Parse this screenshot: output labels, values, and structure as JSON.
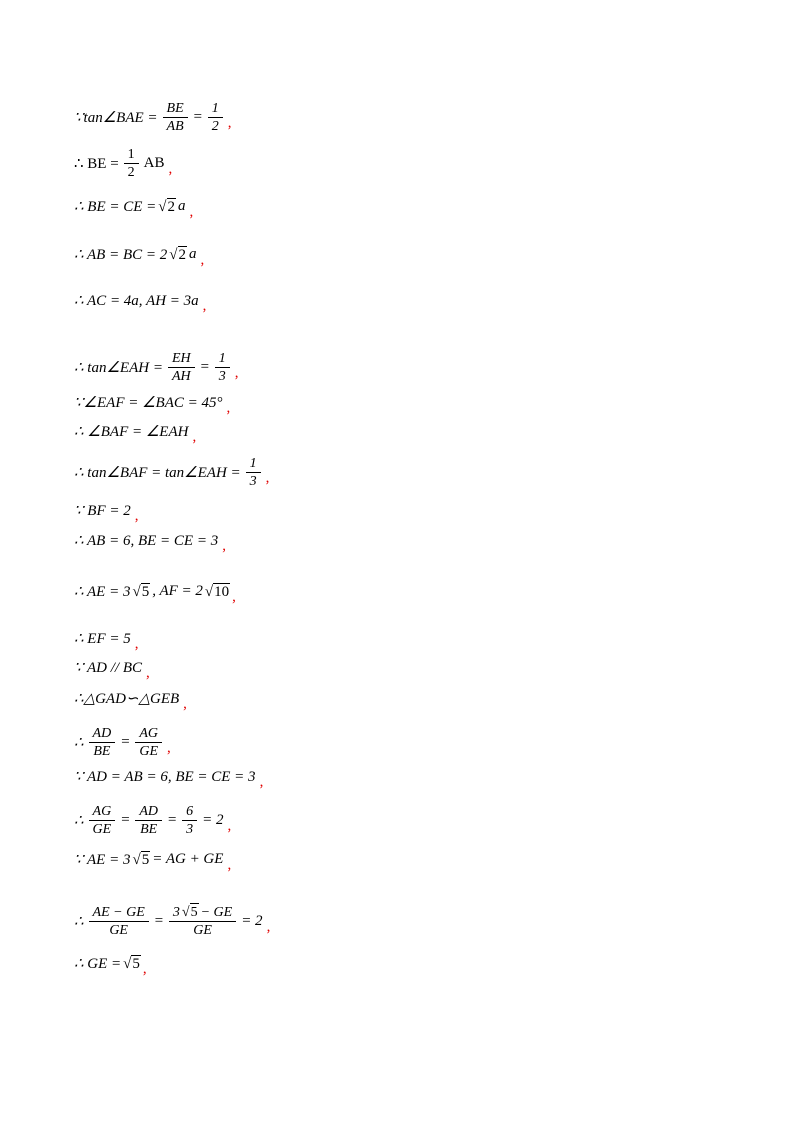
{
  "lines": [
    {
      "parts": [
        "∵tan∠BAE =",
        {
          "num": "BE",
          "den": "AB"
        },
        "=",
        {
          "num": "1",
          "den": "2"
        }
      ],
      "comma": ","
    },
    {
      "parts": [
        "∴ BE =",
        {
          "num": "1",
          "den": "2"
        },
        "AB"
      ],
      "comma": ","
    },
    {
      "parts": [
        "∴ BE = CE =",
        {
          "radical": "√",
          "radicand": "2"
        },
        "a"
      ],
      "comma": ","
    },
    {
      "parts": [
        "∴ AB = BC = 2",
        {
          "radical": "√",
          "radicand": "2"
        },
        "a"
      ],
      "comma": ","
    },
    {
      "parts": [
        "∴ AC = 4a, AH = 3a"
      ],
      "comma": ","
    },
    {
      "parts": [
        "∴ tan∠EAH =",
        {
          "num": "EH",
          "den": "AH"
        },
        "=",
        {
          "num": "1",
          "den": "3"
        }
      ],
      "comma": ","
    },
    {
      "parts": [
        "∵∠EAF = ∠BAC = 45°"
      ],
      "comma": ","
    },
    {
      "parts": [
        "∴ ∠BAF = ∠EAH"
      ],
      "comma": ","
    },
    {
      "parts": [
        "∴ tan∠BAF = tan∠EAH =",
        {
          "num": "1",
          "den": "3"
        }
      ],
      "comma": ","
    },
    {
      "parts": [
        "∵ BF = 2"
      ],
      "comma": ","
    },
    {
      "parts": [
        "∴ AB = 6, BE = CE = 3"
      ],
      "comma": ","
    },
    {
      "parts": [
        "∴ AE = 3",
        {
          "radical": "√",
          "radicand": "5"
        },
        ", AF = 2",
        {
          "radical": "√",
          "radicand": "10"
        }
      ],
      "comma": ","
    },
    {
      "parts": [
        "∴ EF = 5"
      ],
      "comma": ","
    },
    {
      "parts": [
        "∵ AD // BC"
      ],
      "comma": ","
    },
    {
      "parts": [
        "∴△GAD∽△GEB"
      ],
      "comma": ","
    },
    {
      "parts": [
        "∴",
        {
          "num": "AD",
          "den": "BE"
        },
        "=",
        {
          "num": "AG",
          "den": "GE"
        }
      ],
      "comma": ","
    },
    {
      "parts": [
        "∵ AD = AB = 6, BE = CE = 3"
      ],
      "comma": ","
    },
    {
      "parts": [
        "∴",
        {
          "num": "AG",
          "den": "GE"
        },
        "=",
        {
          "num": "AD",
          "den": "BE"
        },
        "=",
        {
          "num": "6",
          "den": "3"
        },
        "= 2"
      ],
      "comma": ","
    },
    {
      "parts": [
        "∵ AE = 3",
        {
          "radical": "√",
          "radicand": "5"
        },
        "= AG + GE"
      ],
      "comma": ","
    },
    {
      "parts": [
        "∴",
        {
          "num": "AE − GE",
          "den": "GE"
        },
        "=",
        {
          "num": [
            "3",
            {
              "radical": "√",
              "radicand": "5"
            },
            "− GE"
          ],
          "den": "GE"
        },
        "= 2"
      ],
      "comma": ","
    },
    {
      "parts": [
        "∴ GE =",
        {
          "radical": "√",
          "radicand": "5"
        }
      ],
      "comma": ","
    }
  ]
}
